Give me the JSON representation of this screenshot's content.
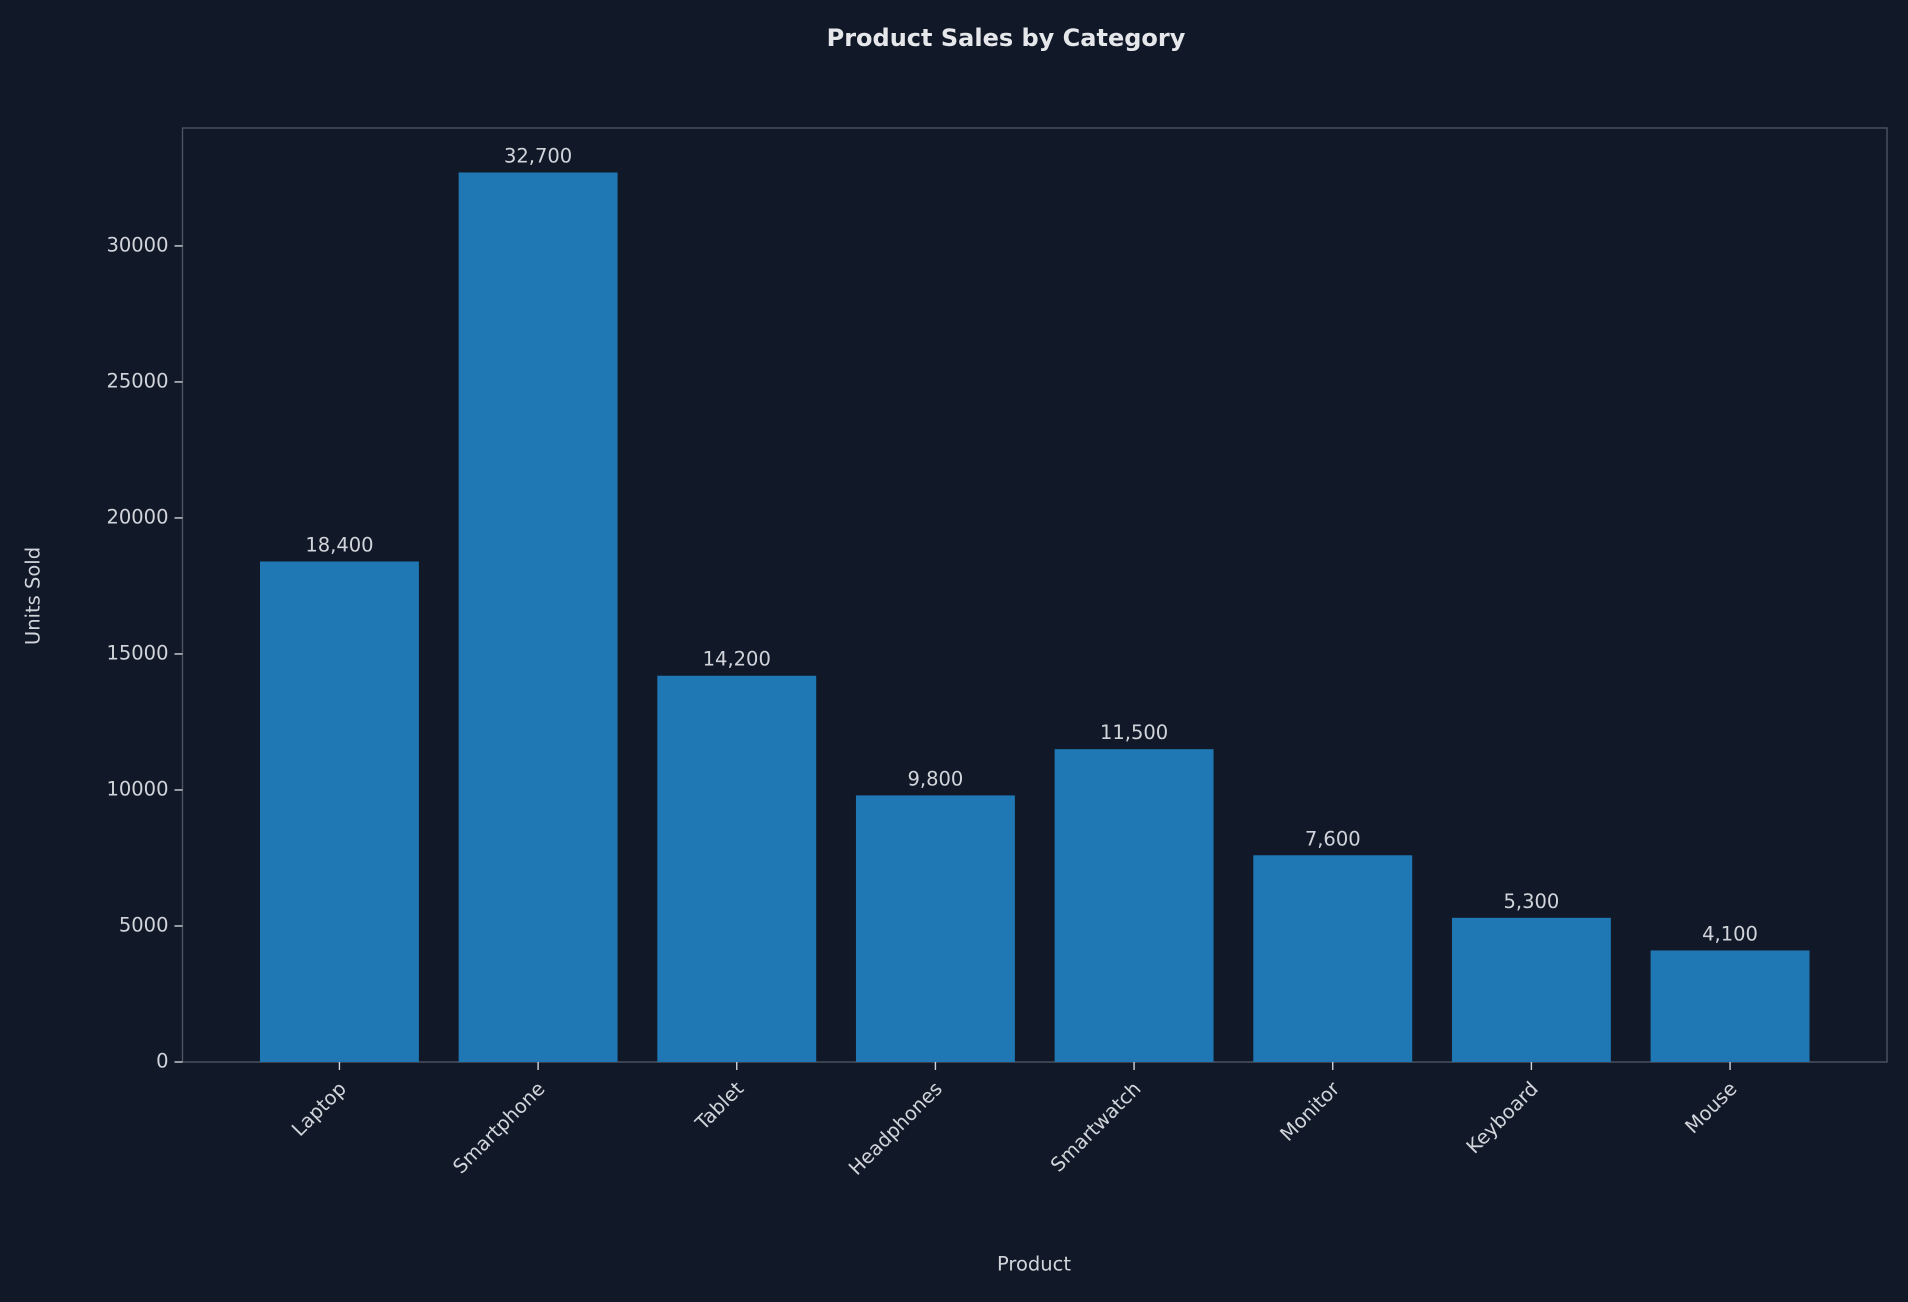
{
  "chart_data": {
    "type": "bar",
    "title": "Product Sales by Category",
    "x_label": "Product",
    "y_label": "Units Sold",
    "categories": [
      "Laptop",
      "Smartphone",
      "Tablet",
      "Headphones",
      "Smartwatch",
      "Monitor",
      "Keyboard",
      "Mouse"
    ],
    "values": [
      18400,
      32700,
      14200,
      9800,
      11500,
      7600,
      5300,
      4100
    ],
    "value_labels": [
      "18,400",
      "32,700",
      "14,200",
      "9,800",
      "11,500",
      "7,600",
      "5,300",
      "4,100"
    ],
    "color": "#1f77b4",
    "ylim": [
      0,
      34335
    ],
    "yticks": [
      0,
      5000,
      10000,
      15000,
      20000,
      25000,
      30000
    ],
    "grid": false
  }
}
